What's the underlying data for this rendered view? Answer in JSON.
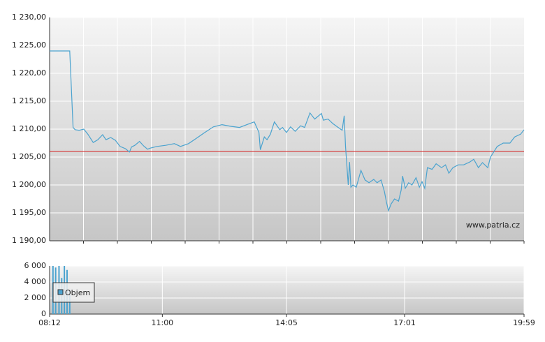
{
  "chart_data": [
    {
      "type": "line",
      "watermark": "www.patria.cz",
      "x": [
        "08:12",
        "08:42",
        "08:47",
        "08:50",
        "08:56",
        "09:03",
        "09:09",
        "09:17",
        "09:24",
        "09:31",
        "09:36",
        "09:43",
        "09:50",
        "09:57",
        "10:05",
        "10:11",
        "10:14",
        "10:19",
        "10:26",
        "10:32",
        "10:38",
        "10:42",
        "10:52",
        "11:05",
        "11:18",
        "11:27",
        "11:39",
        "11:50",
        "12:02",
        "12:16",
        "12:29",
        "12:42",
        "12:55",
        "13:08",
        "13:17",
        "13:24",
        "13:26",
        "13:32",
        "13:36",
        "13:41",
        "13:47",
        "13:55",
        "13:59",
        "14:05",
        "14:11",
        "14:18",
        "14:26",
        "14:32",
        "14:40",
        "14:47",
        "14:57",
        "15:00",
        "15:07",
        "15:14",
        "15:22",
        "15:28",
        "15:31",
        "15:33",
        "15:37",
        "15:39",
        "15:41",
        "15:44",
        "15:49",
        "15:56",
        "16:02",
        "16:08",
        "16:15",
        "16:20",
        "16:26",
        "16:31",
        "16:34",
        "16:37",
        "16:41",
        "16:46",
        "16:52",
        "16:56",
        "16:58",
        "17:02",
        "17:07",
        "17:12",
        "17:18",
        "17:23",
        "17:27",
        "17:31",
        "17:35",
        "17:42",
        "17:48",
        "17:56",
        "18:02",
        "18:07",
        "18:13",
        "18:21",
        "18:29",
        "18:38",
        "18:44",
        "18:51",
        "18:57",
        "19:05",
        "19:09",
        "19:19",
        "19:28",
        "19:38",
        "19:45",
        "19:54",
        "19:59"
      ],
      "series": [
        {
          "color": "#4ba3cf",
          "values": [
            1224.0,
            1224.0,
            1210.3,
            1209.9,
            1209.8,
            1210.0,
            1209.1,
            1207.6,
            1208.1,
            1209.0,
            1208.1,
            1208.5,
            1208.0,
            1206.9,
            1206.5,
            1205.9,
            1206.8,
            1207.1,
            1207.8,
            1207.0,
            1206.4,
            1206.6,
            1206.9,
            1207.1,
            1207.4,
            1206.9,
            1207.4,
            1208.3,
            1209.3,
            1210.4,
            1210.8,
            1210.5,
            1210.3,
            1210.9,
            1211.3,
            1209.4,
            1206.3,
            1208.6,
            1208.1,
            1209.1,
            1211.3,
            1209.9,
            1210.3,
            1209.4,
            1210.4,
            1209.6,
            1210.6,
            1210.3,
            1212.9,
            1211.8,
            1212.8,
            1211.6,
            1211.8,
            1211.0,
            1210.3,
            1209.8,
            1212.4,
            1206.9,
            1200.0,
            1204.1,
            1199.6,
            1200.0,
            1199.6,
            1202.6,
            1200.9,
            1200.4,
            1201.0,
            1200.4,
            1200.9,
            1198.8,
            1196.9,
            1195.4,
            1196.6,
            1197.5,
            1197.1,
            1199.1,
            1201.6,
            1199.4,
            1200.4,
            1200.0,
            1201.3,
            1199.6,
            1200.6,
            1199.4,
            1203.1,
            1202.8,
            1203.8,
            1203.1,
            1203.6,
            1202.1,
            1203.1,
            1203.6,
            1203.6,
            1204.1,
            1204.6,
            1203.1,
            1204.0,
            1203.1,
            1205.0,
            1206.9,
            1207.5,
            1207.5,
            1208.6,
            1209.1,
            1209.9
          ]
        }
      ],
      "reference_line": {
        "value": 1206,
        "color": "#d42020"
      },
      "xlim": [
        "08:12",
        "19:59"
      ],
      "ylim": [
        1190,
        1230
      ],
      "yticks": [
        {
          "value": 1190,
          "label": "1 190,00"
        },
        {
          "value": 1195,
          "label": "1 195,00"
        },
        {
          "value": 1200,
          "label": "1 200,00"
        },
        {
          "value": 1205,
          "label": "1 205,00"
        },
        {
          "value": 1210,
          "label": "1 210,00"
        },
        {
          "value": 1215,
          "label": "1 215,00"
        },
        {
          "value": 1220,
          "label": "1 220,00"
        },
        {
          "value": 1225,
          "label": "1 225,00"
        },
        {
          "value": 1230,
          "label": "1 230,00"
        }
      ],
      "grid": true
    },
    {
      "type": "bar",
      "x": [
        "08:17",
        "08:21",
        "08:26",
        "08:30",
        "08:34",
        "08:38",
        "08:42"
      ],
      "series": [
        {
          "name": "Objem",
          "color": "#4ba3cf",
          "values": [
            6000,
            5800,
            6000,
            4500,
            6000,
            5500,
            3000
          ]
        }
      ],
      "xlim": [
        "08:12",
        "19:59"
      ],
      "xticks": [
        "08:12",
        "11:00",
        "14:05",
        "17:01",
        "19:59"
      ],
      "ylim": [
        0,
        6000
      ],
      "yticks": [
        0,
        {
          "value": 2000,
          "label": "2 000"
        },
        {
          "value": 4000,
          "label": "4 000"
        },
        {
          "value": 6000,
          "label": "6 000"
        }
      ],
      "legend": "upper-left",
      "grid": true
    }
  ]
}
